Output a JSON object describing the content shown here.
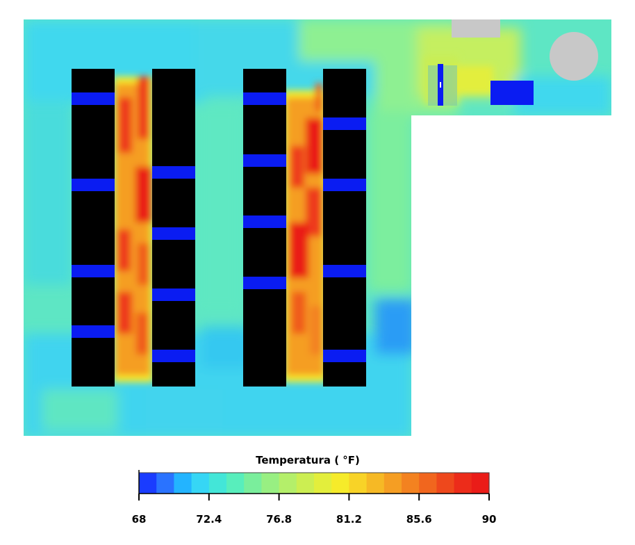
{
  "legend": {
    "title": "Temperatura ( °F)",
    "ticks": [
      "68",
      "72.4",
      "76.8",
      "81.2",
      "85.6",
      "90"
    ],
    "min": 68,
    "max": 90,
    "colors": [
      "#1a3cff",
      "#2a73ff",
      "#23b4ff",
      "#36d6f5",
      "#43e6d8",
      "#58eebc",
      "#7aee9c",
      "#98ef82",
      "#b4ef6a",
      "#ccee52",
      "#e3ee3c",
      "#f6eb2a",
      "#f8d327",
      "#f6b925",
      "#f59e23",
      "#f38220",
      "#f1661e",
      "#ee481c",
      "#ec2c1a",
      "#ea1c18"
    ]
  },
  "map": {
    "background_color": "#5ee6c4",
    "rack_color": "#000000",
    "tile_color": "#0a1cf2",
    "unit_color": "#c8c8c8"
  }
}
